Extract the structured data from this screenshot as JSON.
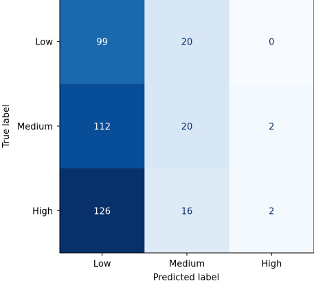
{
  "chart_data": {
    "type": "heatmap",
    "title": "",
    "xlabel": "Predicted label",
    "ylabel": "True label",
    "x_categories": [
      "Low",
      "Medium",
      "High"
    ],
    "y_categories": [
      "Low",
      "Medium",
      "High"
    ],
    "values": [
      [
        99,
        20,
        0
      ],
      [
        112,
        20,
        2
      ],
      [
        126,
        16,
        2
      ]
    ],
    "colormap": "Blues",
    "value_range": [
      0,
      126
    ],
    "grid": false,
    "colorbar": false
  }
}
